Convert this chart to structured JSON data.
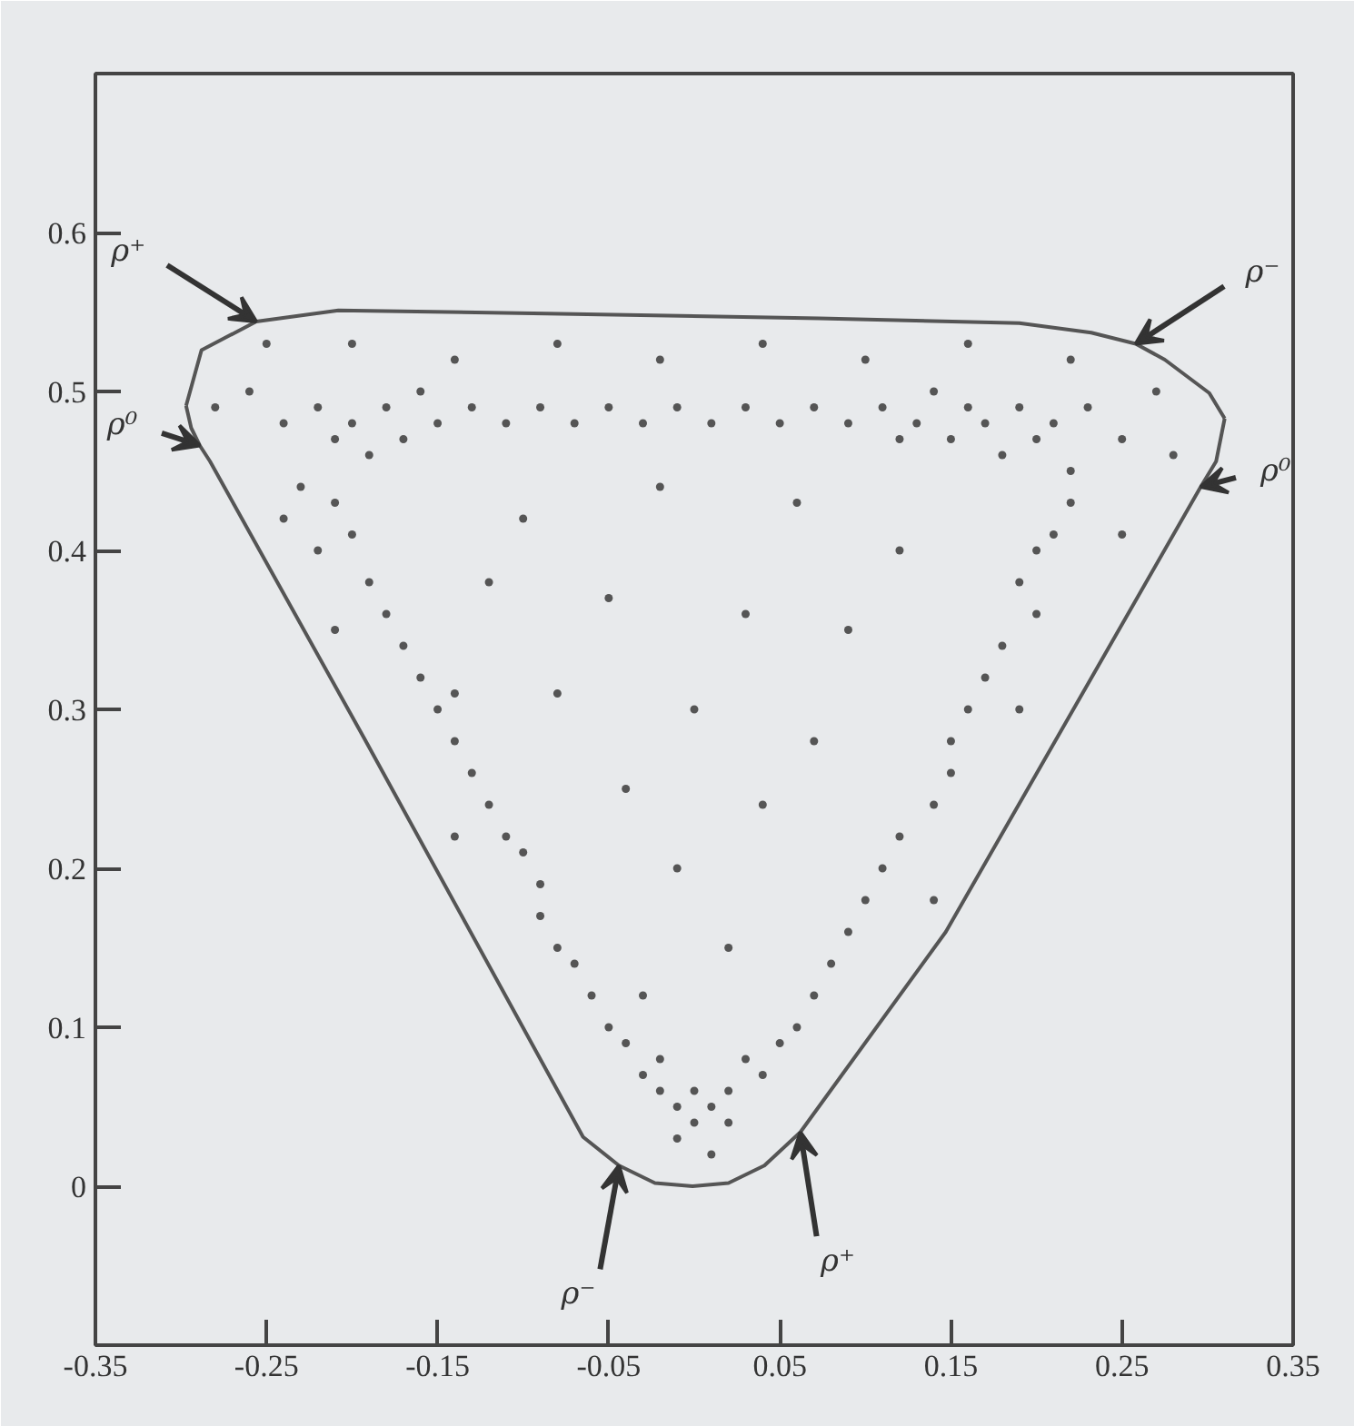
{
  "chart_data": {
    "type": "scatter",
    "xlim": [
      -0.35,
      0.35
    ],
    "ylim": [
      -0.1,
      0.7
    ],
    "xticks": [
      -0.35,
      -0.25,
      -0.15,
      -0.05,
      0.05,
      0.15,
      0.25,
      0.35
    ],
    "yticks": [
      0,
      0.1,
      0.2,
      0.3,
      0.4,
      0.5,
      0.6
    ],
    "grid": false,
    "marker": "circle",
    "series": [
      {
        "color": "#555555",
        "x": [
          -0.26,
          -0.24,
          -0.22,
          -0.21,
          -0.2,
          -0.19,
          -0.18,
          -0.17,
          -0.16,
          -0.15,
          -0.13,
          -0.11,
          -0.09,
          -0.07,
          -0.05,
          -0.03,
          -0.01,
          0.01,
          0.03,
          0.05,
          0.07,
          0.09,
          0.11,
          0.12,
          0.13,
          0.14,
          0.15,
          0.16,
          0.17,
          0.18,
          0.19,
          0.2,
          0.21,
          0.22,
          0.23,
          0.25,
          -0.25,
          -0.2,
          -0.14,
          -0.08,
          -0.02,
          0.04,
          0.1,
          0.16,
          0.22,
          0.27,
          -0.28,
          0.28,
          -0.23,
          -0.21,
          -0.2,
          -0.22,
          -0.19,
          -0.18,
          -0.17,
          -0.16,
          -0.15,
          -0.14,
          -0.14,
          -0.13,
          -0.12,
          -0.11,
          -0.1,
          -0.09,
          -0.09,
          -0.08,
          -0.07,
          -0.06,
          -0.05,
          -0.04,
          -0.03,
          0.22,
          0.21,
          0.2,
          0.19,
          0.2,
          0.18,
          0.17,
          0.16,
          0.15,
          0.15,
          0.14,
          0.12,
          0.11,
          0.1,
          0.09,
          0.08,
          0.07,
          0.06,
          0.05,
          0.04,
          -0.02,
          -0.01,
          0.0,
          0.01,
          0.02,
          0.0,
          -0.01,
          0.01,
          0.02,
          -0.02,
          0.03,
          -0.1,
          -0.02,
          0.06,
          0.12,
          -0.12,
          -0.05,
          0.03,
          0.09,
          -0.08,
          0.0,
          0.07,
          -0.04,
          0.04,
          -0.01,
          0.02,
          -0.03,
          -0.24,
          -0.21,
          0.25,
          0.19,
          -0.14,
          0.14
        ],
        "values": [
          0.5,
          0.48,
          0.49,
          0.47,
          0.48,
          0.46,
          0.49,
          0.47,
          0.5,
          0.48,
          0.49,
          0.48,
          0.49,
          0.48,
          0.49,
          0.48,
          0.49,
          0.48,
          0.49,
          0.48,
          0.49,
          0.48,
          0.49,
          0.47,
          0.48,
          0.5,
          0.47,
          0.49,
          0.48,
          0.46,
          0.49,
          0.47,
          0.48,
          0.45,
          0.49,
          0.47,
          0.53,
          0.53,
          0.52,
          0.53,
          0.52,
          0.53,
          0.52,
          0.53,
          0.52,
          0.5,
          0.49,
          0.46,
          0.44,
          0.43,
          0.41,
          0.4,
          0.38,
          0.36,
          0.34,
          0.32,
          0.3,
          0.31,
          0.28,
          0.26,
          0.24,
          0.22,
          0.21,
          0.19,
          0.17,
          0.15,
          0.14,
          0.12,
          0.1,
          0.09,
          0.07,
          0.43,
          0.41,
          0.4,
          0.38,
          0.36,
          0.34,
          0.32,
          0.3,
          0.28,
          0.26,
          0.24,
          0.22,
          0.2,
          0.18,
          0.16,
          0.14,
          0.12,
          0.1,
          0.09,
          0.07,
          0.06,
          0.05,
          0.06,
          0.05,
          0.06,
          0.04,
          0.03,
          0.02,
          0.04,
          0.08,
          0.08,
          0.42,
          0.44,
          0.43,
          0.4,
          0.38,
          0.37,
          0.36,
          0.35,
          0.31,
          0.3,
          0.28,
          0.25,
          0.24,
          0.2,
          0.15,
          0.12,
          0.42,
          0.35,
          0.41,
          0.3,
          0.22,
          0.18
        ]
      },
      {
        "type": "line",
        "marker": "none",
        "color": "#555555",
        "x": [
          -0.297,
          -0.288,
          -0.256,
          -0.208,
          -0.086,
          0.073,
          0.19,
          0.232,
          0.258,
          0.275,
          0.301,
          0.31
        ],
        "values": [
          0.491,
          0.526,
          0.544,
          0.551,
          0.549,
          0.546,
          0.543,
          0.537,
          0.53,
          0.52,
          0.499,
          0.483
        ]
      },
      {
        "type": "line",
        "marker": "none",
        "color": "#555555",
        "x": [
          -0.297,
          -0.294,
          -0.289,
          -0.283,
          -0.193,
          -0.065,
          -0.044,
          -0.023,
          -0.001,
          0.02,
          0.041,
          0.062,
          0.147,
          0.229,
          0.296,
          0.305,
          0.31
        ],
        "values": [
          0.491,
          0.477,
          0.466,
          0.456,
          0.282,
          0.031,
          0.013,
          0.002,
          0.0,
          0.002,
          0.013,
          0.034,
          0.16,
          0.314,
          0.44,
          0.456,
          0.483
        ]
      }
    ],
    "annotations": [
      {
        "text": "ρ⁺",
        "x": -0.256,
        "y": 0.544
      },
      {
        "text": "ρ⁻",
        "x": 0.258,
        "y": 0.53
      },
      {
        "text": "ρ⁰",
        "x": -0.289,
        "y": 0.466
      },
      {
        "text": "ρ⁰",
        "x": 0.296,
        "y": 0.44
      },
      {
        "text": "ρ⁻",
        "x": -0.044,
        "y": 0.013
      },
      {
        "text": "ρ⁺",
        "x": 0.062,
        "y": 0.034
      }
    ]
  }
}
